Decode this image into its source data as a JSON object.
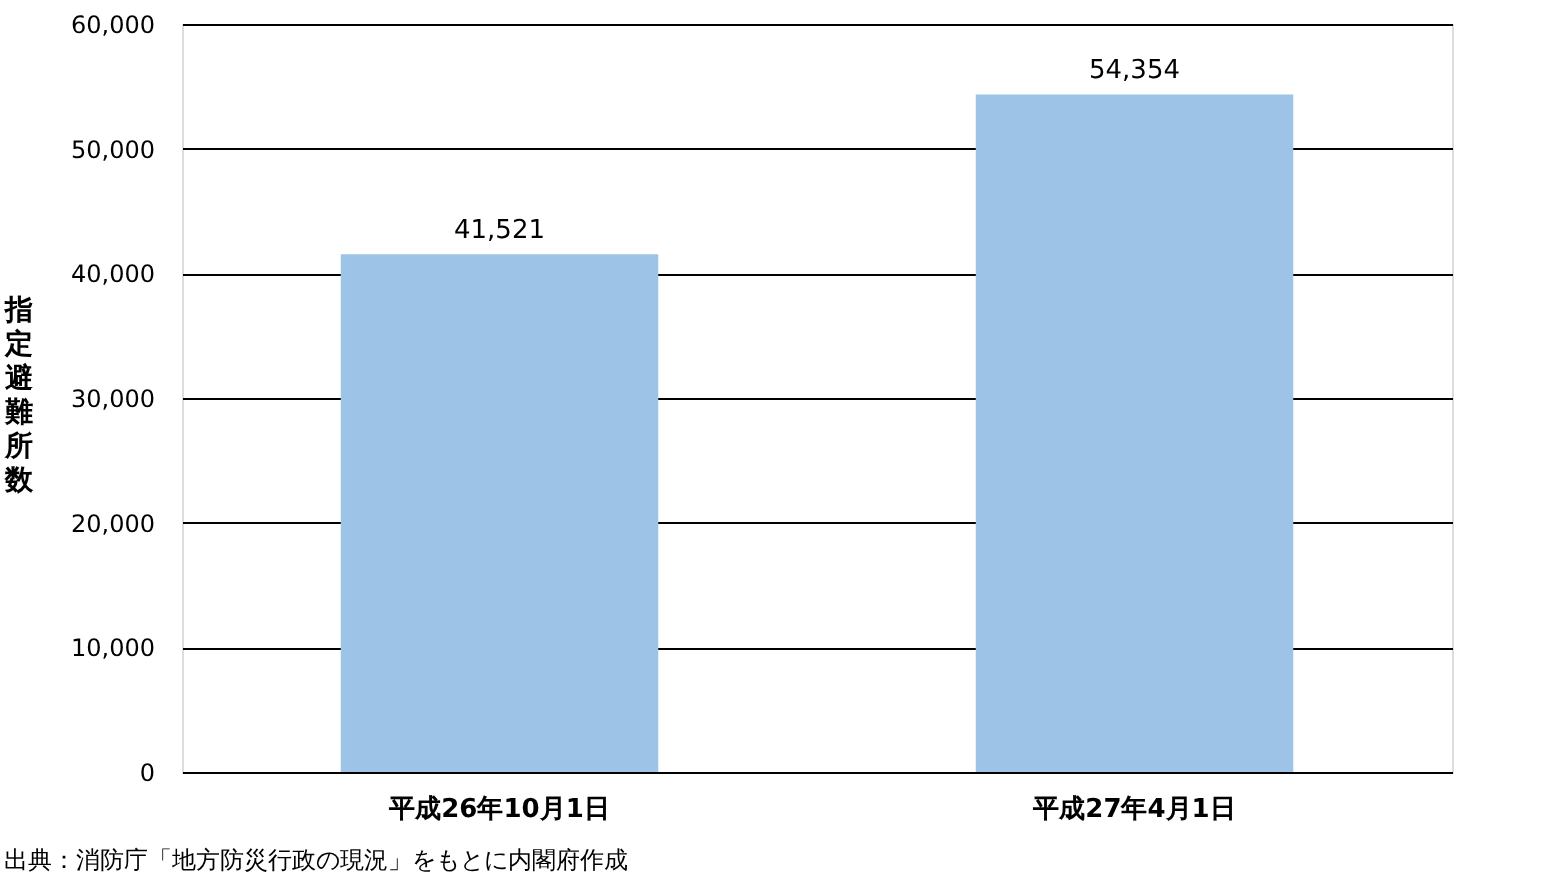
{
  "chart_data": {
    "type": "bar",
    "ylabel": "指定避難所数",
    "categories": [
      "平成26年10月1日",
      "平成27年4月1日"
    ],
    "values": [
      41521,
      54354
    ],
    "color": "#9dc3e6",
    "value_labels": [
      "41,521",
      "54,354"
    ],
    "ylim": [
      0,
      60000
    ],
    "yticks": [
      0,
      {
        "value": 10000,
        "label": "10,000"
      },
      {
        "value": 20000,
        "label": "20,000"
      },
      {
        "value": 30000,
        "label": "30,000"
      },
      {
        "value": 40000,
        "label": "40,000"
      },
      {
        "value": 50000,
        "label": "50,000"
      },
      {
        "value": 60000,
        "label": "60,000"
      }
    ],
    "grid": "y",
    "annotations": [
      "出典：消防庁「地方防災行政の現況」をもとに内閣府作成"
    ]
  }
}
